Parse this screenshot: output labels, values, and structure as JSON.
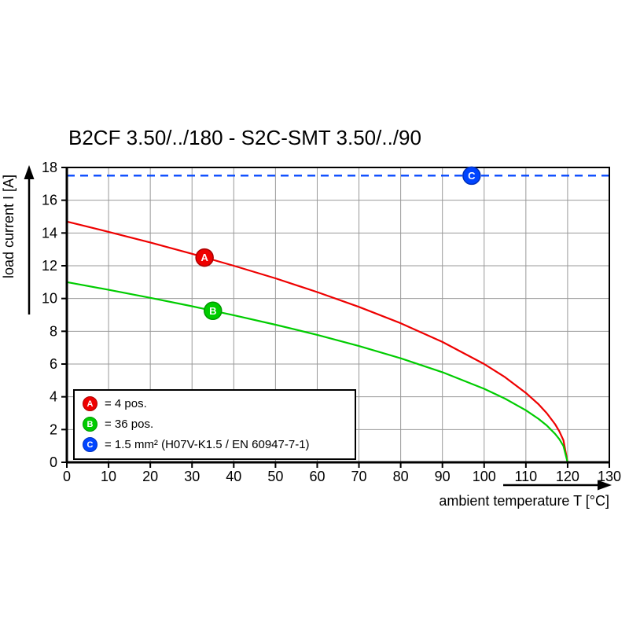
{
  "title": "B2CF 3.50/../180 - S2C-SMT 3.50/../90",
  "chart_data": {
    "type": "line",
    "title": "B2CF 3.50/../180 - S2C-SMT 3.50/../90",
    "xlabel": "ambient temperature T [°C]",
    "ylabel": "load current I [A]",
    "xlim": [
      0,
      130
    ],
    "ylim": [
      0,
      18
    ],
    "xticks": [
      0,
      10,
      20,
      30,
      40,
      50,
      60,
      70,
      80,
      90,
      100,
      110,
      120,
      130
    ],
    "yticks": [
      0,
      2,
      4,
      6,
      8,
      10,
      12,
      14,
      16,
      18
    ],
    "grid": true,
    "grid_color": "#999999",
    "legend_position": "lower-left",
    "series": [
      {
        "name": "A",
        "legend_label": "= 4 pos.",
        "color": "#ee0000",
        "marker_edge": "#aa0000",
        "style": "solid",
        "marker": {
          "letter": "A",
          "x": 33,
          "y": 12.5
        },
        "points": [
          [
            0,
            14.7
          ],
          [
            10,
            14.07
          ],
          [
            20,
            13.42
          ],
          [
            30,
            12.73
          ],
          [
            40,
            12.0
          ],
          [
            50,
            11.23
          ],
          [
            60,
            10.39
          ],
          [
            70,
            9.49
          ],
          [
            80,
            8.49
          ],
          [
            90,
            7.35
          ],
          [
            100,
            6.0
          ],
          [
            105,
            5.2
          ],
          [
            110,
            4.24
          ],
          [
            113,
            3.55
          ],
          [
            115,
            3.0
          ],
          [
            117,
            2.33
          ],
          [
            118,
            1.9
          ],
          [
            119,
            1.35
          ],
          [
            120,
            0
          ]
        ]
      },
      {
        "name": "B",
        "legend_label": "= 36 pos.",
        "color": "#00cc00",
        "marker_edge": "#009900",
        "style": "solid",
        "marker": {
          "letter": "B",
          "x": 35,
          "y": 9.25
        },
        "points": [
          [
            0,
            11.0
          ],
          [
            10,
            10.53
          ],
          [
            20,
            10.04
          ],
          [
            30,
            9.53
          ],
          [
            40,
            8.98
          ],
          [
            50,
            8.4
          ],
          [
            60,
            7.78
          ],
          [
            70,
            7.1
          ],
          [
            80,
            6.35
          ],
          [
            90,
            5.5
          ],
          [
            100,
            4.49
          ],
          [
            105,
            3.89
          ],
          [
            110,
            3.18
          ],
          [
            113,
            2.66
          ],
          [
            115,
            2.25
          ],
          [
            117,
            1.74
          ],
          [
            118,
            1.42
          ],
          [
            119,
            1.0
          ],
          [
            120,
            0
          ]
        ]
      },
      {
        "name": "C",
        "legend_label": "= 1.5 mm² (H07V-K1.5 / EN 60947-7-1)",
        "color": "#0044ff",
        "marker_edge": "#0030bb",
        "style": "dashed",
        "marker": {
          "letter": "C",
          "x": 97,
          "y": 17.5
        },
        "points": [
          [
            0,
            17.5
          ],
          [
            130,
            17.5
          ]
        ]
      }
    ]
  }
}
